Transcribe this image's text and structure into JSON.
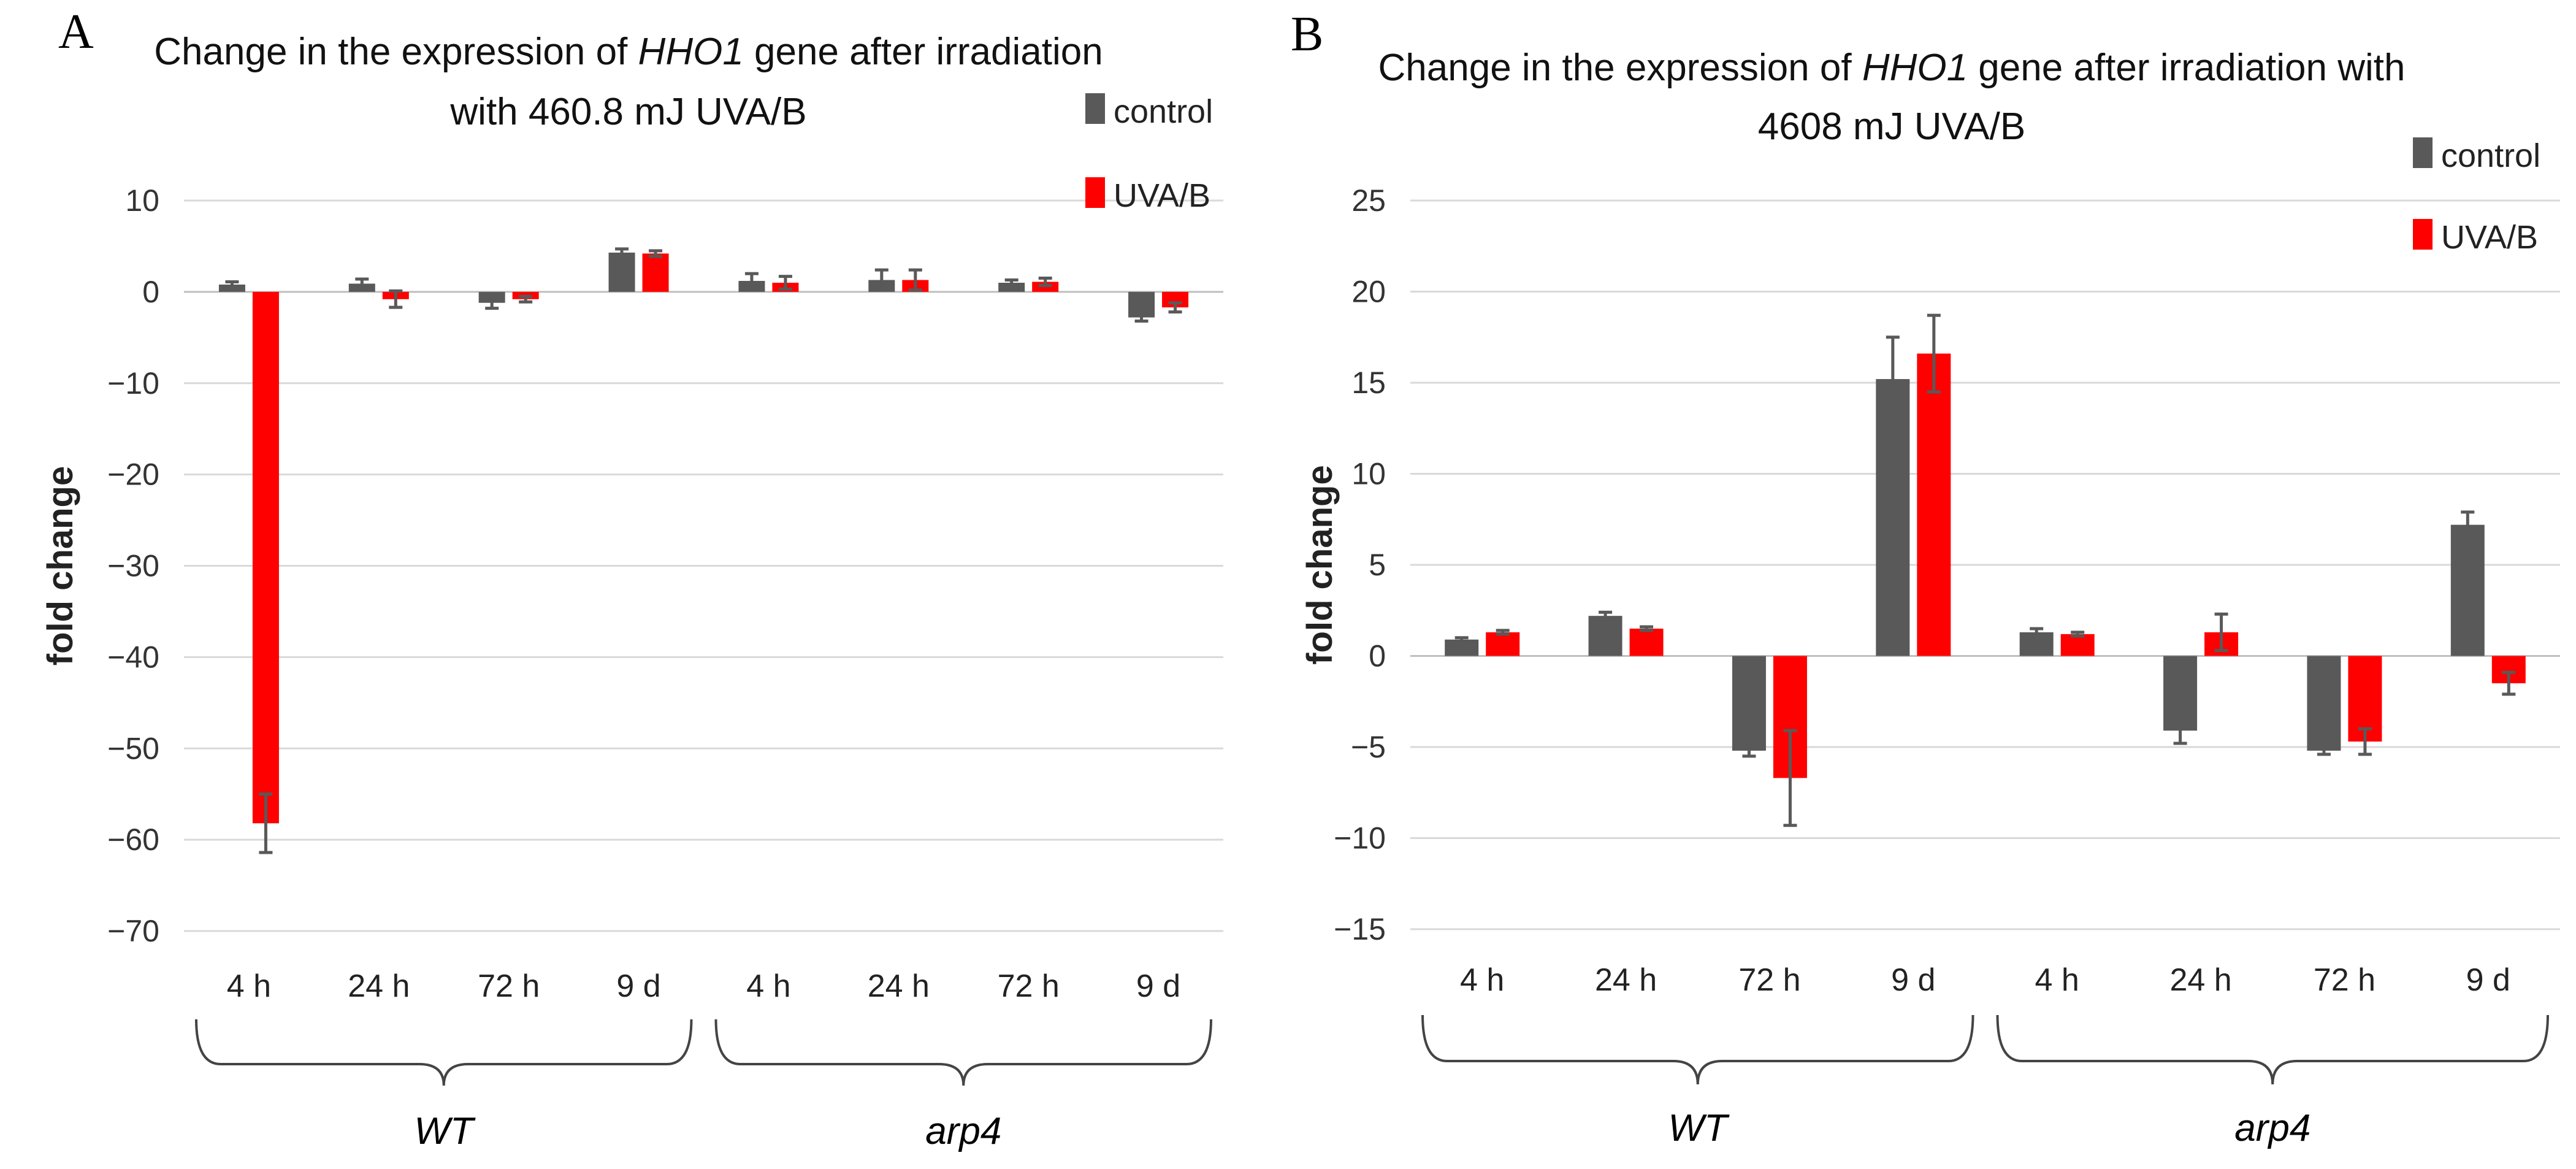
{
  "chart_data": [
    {
      "type": "bar",
      "panel": "A",
      "title_parts": [
        "Change in the expression of ",
        "HHO1",
        " gene after irradiation"
      ],
      "title_line2": "with 460.8 mJ UVA/B",
      "ylabel": "fold change",
      "ylim": [
        -70,
        10
      ],
      "yticks": [
        10,
        0,
        -10,
        -20,
        -30,
        -40,
        -50,
        -60,
        -70
      ],
      "categories": [
        "4 h",
        "24 h",
        "72 h",
        "9 d",
        "4 h",
        "24 h",
        "72 h",
        "9 d"
      ],
      "groups": [
        {
          "label": "WT",
          "start": 0,
          "end": 3
        },
        {
          "label": "arp4",
          "start": 4,
          "end": 7
        }
      ],
      "series": [
        {
          "name": "control",
          "color": "#595959",
          "values": [
            0.8,
            0.9,
            -1.2,
            4.3,
            1.2,
            1.3,
            1.0,
            -2.8
          ],
          "errors": [
            0.3,
            0.5,
            0.6,
            0.4,
            0.8,
            1.1,
            0.3,
            0.4
          ]
        },
        {
          "name": "UVA/B",
          "color": "#ff0000",
          "values": [
            -58.2,
            -0.8,
            -0.8,
            4.2,
            1.0,
            1.3,
            1.1,
            -1.7
          ],
          "errors": [
            3.2,
            0.9,
            0.3,
            0.3,
            0.7,
            1.1,
            0.4,
            0.5
          ]
        }
      ]
    },
    {
      "type": "bar",
      "panel": "B",
      "title_parts": [
        "Change in the expression of ",
        "HHO1",
        " gene after irradiation with"
      ],
      "title_line2": "4608 mJ UVA/B",
      "ylabel": "fold change",
      "ylim": [
        -15,
        25
      ],
      "yticks": [
        25,
        20,
        15,
        10,
        5,
        0,
        -5,
        -10,
        -15
      ],
      "categories": [
        "4 h",
        "24 h",
        "72 h",
        "9 d",
        "4 h",
        "24 h",
        "72 h",
        "9 d"
      ],
      "groups": [
        {
          "label": "WT",
          "start": 0,
          "end": 3
        },
        {
          "label": "arp4",
          "start": 4,
          "end": 7
        }
      ],
      "series": [
        {
          "name": "control",
          "color": "#595959",
          "values": [
            0.9,
            2.2,
            -5.2,
            15.2,
            1.3,
            -4.1,
            -5.2,
            7.2
          ],
          "errors": [
            0.1,
            0.2,
            0.3,
            2.3,
            0.2,
            0.7,
            0.2,
            0.7
          ]
        },
        {
          "name": "UVA/B",
          "color": "#ff0000",
          "values": [
            1.3,
            1.5,
            -6.7,
            16.6,
            1.2,
            1.3,
            -4.7,
            -1.5
          ],
          "errors": [
            0.1,
            0.1,
            2.6,
            2.1,
            0.1,
            1.0,
            0.7,
            0.6
          ]
        }
      ]
    }
  ]
}
